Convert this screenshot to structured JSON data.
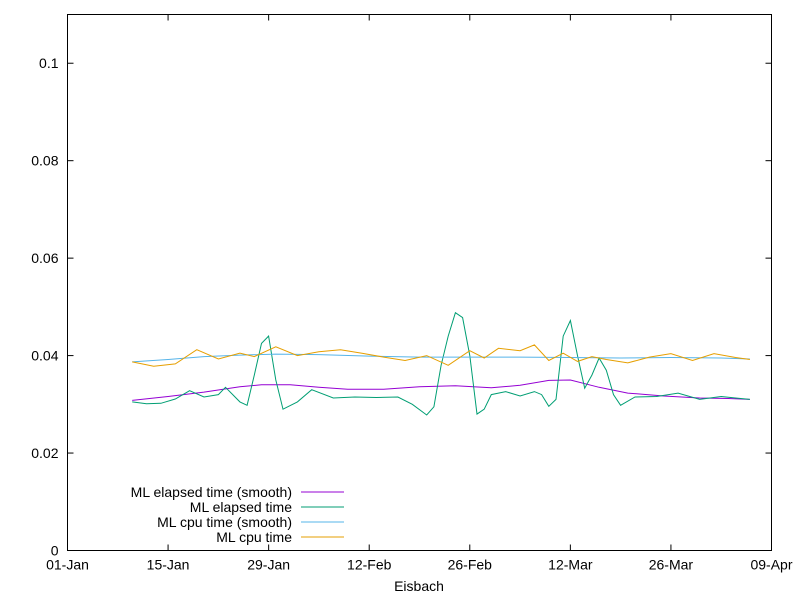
{
  "chart_data": {
    "type": "line",
    "title": "",
    "xlabel": "Eisbach",
    "ylabel": "",
    "xlim": [
      "2021-01-01",
      "2021-04-09"
    ],
    "ylim": [
      0,
      0.11
    ],
    "grid": false,
    "legend_position": "bottom-left",
    "x_ticks": [
      "01-Jan",
      "15-Jan",
      "29-Jan",
      "12-Feb",
      "26-Feb",
      "12-Mar",
      "26-Mar",
      "09-Apr"
    ],
    "y_ticks": [
      "0",
      "0.02",
      "0.04",
      "0.06",
      "0.08",
      "0.1"
    ],
    "series": [
      {
        "name": "ML elapsed time (smooth)",
        "color": "#9400d3",
        "points": [
          [
            "2021-01-10",
            0.0308
          ],
          [
            "2021-01-15",
            0.0316
          ],
          [
            "2021-01-20",
            0.0325
          ],
          [
            "2021-01-25",
            0.0336
          ],
          [
            "2021-01-28",
            0.034
          ],
          [
            "2021-02-01",
            0.034
          ],
          [
            "2021-02-05",
            0.0335
          ],
          [
            "2021-02-09",
            0.0331
          ],
          [
            "2021-02-14",
            0.0331
          ],
          [
            "2021-02-19",
            0.0336
          ],
          [
            "2021-02-24",
            0.0338
          ],
          [
            "2021-03-01",
            0.0334
          ],
          [
            "2021-03-05",
            0.0339
          ],
          [
            "2021-03-09",
            0.0349
          ],
          [
            "2021-03-12",
            0.035
          ],
          [
            "2021-03-16",
            0.0335
          ],
          [
            "2021-03-20",
            0.0323
          ],
          [
            "2021-03-25",
            0.0317
          ],
          [
            "2021-03-30",
            0.0313
          ],
          [
            "2021-04-03",
            0.0312
          ],
          [
            "2021-04-06",
            0.031
          ]
        ]
      },
      {
        "name": "ML elapsed time",
        "color": "#009e73",
        "points": [
          [
            "2021-01-10",
            0.0305
          ],
          [
            "2021-01-12",
            0.0301
          ],
          [
            "2021-01-14",
            0.0302
          ],
          [
            "2021-01-16",
            0.0311
          ],
          [
            "2021-01-18",
            0.0328
          ],
          [
            "2021-01-20",
            0.0315
          ],
          [
            "2021-01-22",
            0.032
          ],
          [
            "2021-01-23",
            0.0335
          ],
          [
            "2021-01-25",
            0.0305
          ],
          [
            "2021-01-26",
            0.0298
          ],
          [
            "2021-01-27",
            0.036
          ],
          [
            "2021-01-28",
            0.0425
          ],
          [
            "2021-01-29",
            0.044
          ],
          [
            "2021-01-30",
            0.035
          ],
          [
            "2021-01-31",
            0.029
          ],
          [
            "2021-02-02",
            0.0305
          ],
          [
            "2021-02-04",
            0.033
          ],
          [
            "2021-02-07",
            0.0313
          ],
          [
            "2021-02-10",
            0.0315
          ],
          [
            "2021-02-13",
            0.0314
          ],
          [
            "2021-02-16",
            0.0315
          ],
          [
            "2021-02-18",
            0.03
          ],
          [
            "2021-02-20",
            0.0278
          ],
          [
            "2021-02-21",
            0.0295
          ],
          [
            "2021-02-22",
            0.038
          ],
          [
            "2021-02-23",
            0.044
          ],
          [
            "2021-02-24",
            0.0488
          ],
          [
            "2021-02-25",
            0.0478
          ],
          [
            "2021-02-26",
            0.04
          ],
          [
            "2021-02-27",
            0.028
          ],
          [
            "2021-02-28",
            0.029
          ],
          [
            "2021-03-01",
            0.032
          ],
          [
            "2021-03-03",
            0.0326
          ],
          [
            "2021-03-05",
            0.0317
          ],
          [
            "2021-03-07",
            0.0326
          ],
          [
            "2021-03-08",
            0.032
          ],
          [
            "2021-03-09",
            0.0296
          ],
          [
            "2021-03-10",
            0.031
          ],
          [
            "2021-03-11",
            0.044
          ],
          [
            "2021-03-12",
            0.0472
          ],
          [
            "2021-03-13",
            0.04
          ],
          [
            "2021-03-14",
            0.0333
          ],
          [
            "2021-03-15",
            0.036
          ],
          [
            "2021-03-16",
            0.0395
          ],
          [
            "2021-03-17",
            0.037
          ],
          [
            "2021-03-18",
            0.032
          ],
          [
            "2021-03-19",
            0.0298
          ],
          [
            "2021-03-21",
            0.0315
          ],
          [
            "2021-03-24",
            0.0316
          ],
          [
            "2021-03-27",
            0.0323
          ],
          [
            "2021-03-30",
            0.031
          ],
          [
            "2021-04-02",
            0.0316
          ],
          [
            "2021-04-04",
            0.0313
          ],
          [
            "2021-04-06",
            0.031
          ]
        ]
      },
      {
        "name": "ML cpu time (smooth)",
        "color": "#56b4e9",
        "points": [
          [
            "2021-01-10",
            0.0387
          ],
          [
            "2021-01-15",
            0.0392
          ],
          [
            "2021-01-20",
            0.0398
          ],
          [
            "2021-01-25",
            0.0401
          ],
          [
            "2021-01-30",
            0.0403
          ],
          [
            "2021-02-05",
            0.0402
          ],
          [
            "2021-02-12",
            0.0399
          ],
          [
            "2021-02-19",
            0.0397
          ],
          [
            "2021-02-26",
            0.0397
          ],
          [
            "2021-03-05",
            0.0397
          ],
          [
            "2021-03-12",
            0.0396
          ],
          [
            "2021-03-19",
            0.0395
          ],
          [
            "2021-03-26",
            0.0396
          ],
          [
            "2021-04-02",
            0.0395
          ],
          [
            "2021-04-06",
            0.0393
          ]
        ]
      },
      {
        "name": "ML cpu time",
        "color": "#e69f00",
        "points": [
          [
            "2021-01-10",
            0.0387
          ],
          [
            "2021-01-13",
            0.0378
          ],
          [
            "2021-01-16",
            0.0383
          ],
          [
            "2021-01-19",
            0.0412
          ],
          [
            "2021-01-22",
            0.0393
          ],
          [
            "2021-01-25",
            0.0405
          ],
          [
            "2021-01-27",
            0.0398
          ],
          [
            "2021-01-30",
            0.0418
          ],
          [
            "2021-02-02",
            0.04
          ],
          [
            "2021-02-05",
            0.0408
          ],
          [
            "2021-02-08",
            0.0412
          ],
          [
            "2021-02-11",
            0.0405
          ],
          [
            "2021-02-14",
            0.0397
          ],
          [
            "2021-02-17",
            0.039
          ],
          [
            "2021-02-20",
            0.04
          ],
          [
            "2021-02-23",
            0.038
          ],
          [
            "2021-02-26",
            0.041
          ],
          [
            "2021-02-28",
            0.0395
          ],
          [
            "2021-03-02",
            0.0415
          ],
          [
            "2021-03-05",
            0.041
          ],
          [
            "2021-03-07",
            0.0422
          ],
          [
            "2021-03-09",
            0.039
          ],
          [
            "2021-03-11",
            0.0405
          ],
          [
            "2021-03-13",
            0.0388
          ],
          [
            "2021-03-15",
            0.0398
          ],
          [
            "2021-03-17",
            0.0392
          ],
          [
            "2021-03-20",
            0.0385
          ],
          [
            "2021-03-23",
            0.0397
          ],
          [
            "2021-03-26",
            0.0404
          ],
          [
            "2021-03-29",
            0.039
          ],
          [
            "2021-04-01",
            0.0404
          ],
          [
            "2021-04-04",
            0.0396
          ],
          [
            "2021-04-06",
            0.0392
          ]
        ]
      }
    ]
  }
}
